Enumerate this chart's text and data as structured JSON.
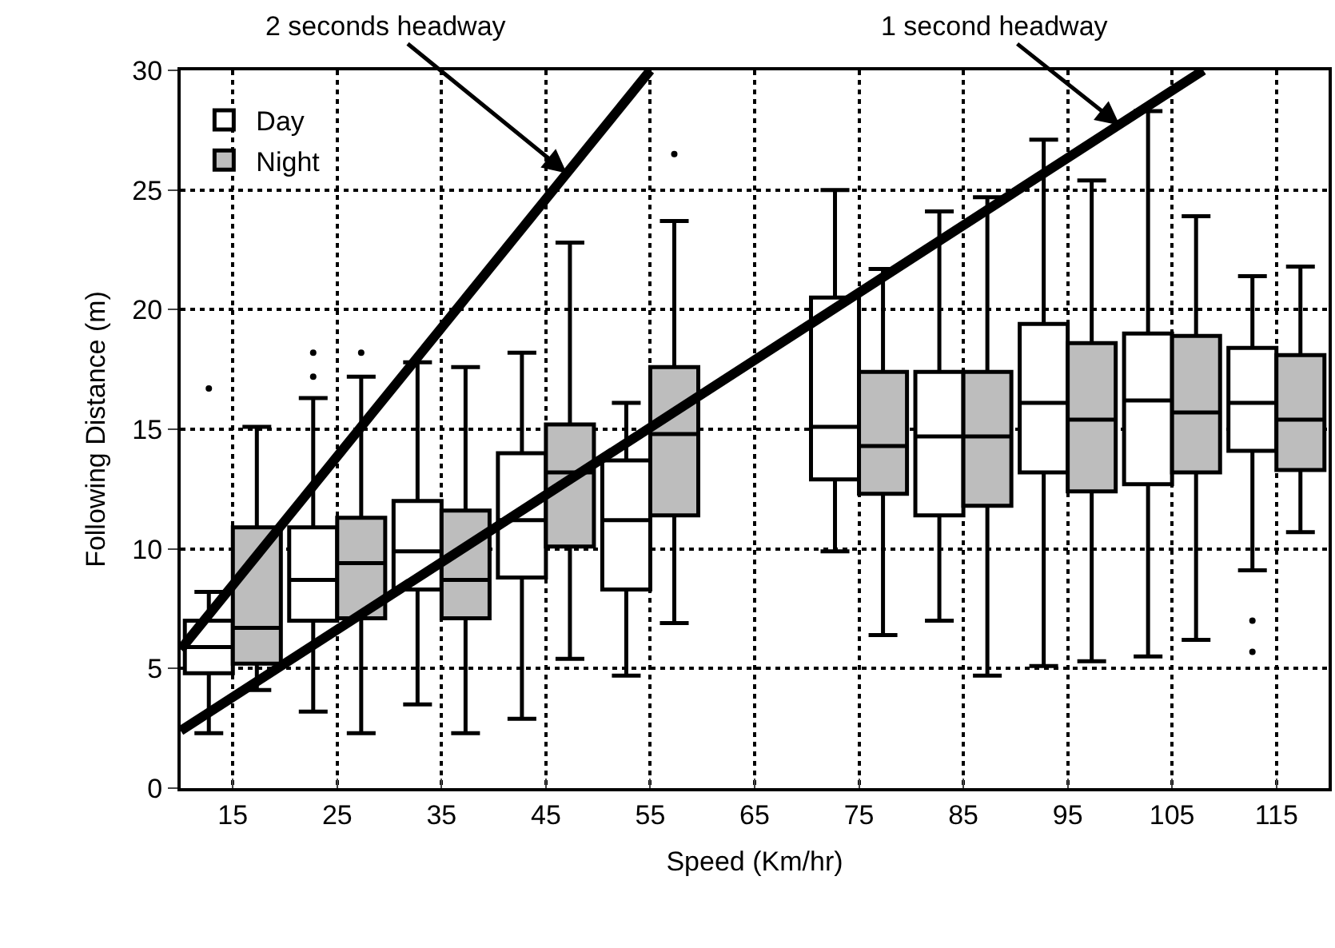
{
  "chart_data": {
    "type": "box",
    "xlabel": "Speed (Km/hr)",
    "ylabel": "Following Distance (m)",
    "x": [
      15,
      25,
      35,
      45,
      55,
      75,
      85,
      95,
      105,
      115
    ],
    "xlim": [
      10,
      120
    ],
    "xticks": [
      15,
      25,
      35,
      45,
      55,
      65,
      75,
      85,
      95,
      105,
      115
    ],
    "ylim": [
      0,
      30
    ],
    "yticks": [
      0,
      5,
      10,
      15,
      20,
      25,
      30
    ],
    "grid": true,
    "legend": "top left",
    "series": [
      {
        "name": "Day",
        "color": "#ffffff",
        "boxes": [
          {
            "low": 2.3,
            "q1": 4.8,
            "median": 5.9,
            "q3": 7.0,
            "high": 8.2,
            "outliers": [
              16.7
            ]
          },
          {
            "low": 3.2,
            "q1": 7.0,
            "median": 8.7,
            "q3": 10.9,
            "high": 16.3,
            "outliers": [
              17.2,
              18.2
            ]
          },
          {
            "low": 3.5,
            "q1": 8.3,
            "median": 9.9,
            "q3": 12.0,
            "high": 17.8
          },
          {
            "low": 2.9,
            "q1": 8.8,
            "median": 11.2,
            "q3": 14.0,
            "high": 18.2
          },
          {
            "low": 4.7,
            "q1": 8.3,
            "median": 11.2,
            "q3": 13.7,
            "high": 16.1
          },
          {
            "low": 9.9,
            "q1": 12.9,
            "median": 15.1,
            "q3": 20.5,
            "high": 25.0
          },
          {
            "low": 7.0,
            "q1": 11.4,
            "median": 14.7,
            "q3": 17.4,
            "high": 24.1
          },
          {
            "low": 5.1,
            "q1": 13.2,
            "median": 16.1,
            "q3": 19.4,
            "high": 27.1
          },
          {
            "low": 5.5,
            "q1": 12.7,
            "median": 16.2,
            "q3": 19.0,
            "high": 28.3
          },
          {
            "low": 9.1,
            "q1": 14.1,
            "median": 16.1,
            "q3": 18.4,
            "high": 21.4,
            "outliers": [
              5.7,
              7.0
            ]
          }
        ]
      },
      {
        "name": "Night",
        "color": "#bdbdbd",
        "boxes": [
          {
            "low": 4.1,
            "q1": 5.2,
            "median": 6.7,
            "q3": 10.9,
            "high": 15.1
          },
          {
            "low": 2.3,
            "q1": 7.1,
            "median": 9.4,
            "q3": 11.3,
            "high": 17.2,
            "outliers": [
              18.2
            ]
          },
          {
            "low": 2.3,
            "q1": 7.1,
            "median": 8.7,
            "q3": 11.6,
            "high": 17.6
          },
          {
            "low": 5.4,
            "q1": 10.1,
            "median": 13.2,
            "q3": 15.2,
            "high": 22.8
          },
          {
            "low": 6.9,
            "q1": 11.4,
            "median": 14.8,
            "q3": 17.6,
            "high": 23.7,
            "outliers": [
              26.5
            ]
          },
          {
            "low": 6.4,
            "q1": 12.3,
            "median": 14.3,
            "q3": 17.4,
            "high": 21.7
          },
          {
            "low": 4.7,
            "q1": 11.8,
            "median": 14.7,
            "q3": 17.4,
            "high": 24.7
          },
          {
            "low": 5.3,
            "q1": 12.4,
            "median": 15.4,
            "q3": 18.6,
            "high": 25.4
          },
          {
            "low": 6.2,
            "q1": 13.2,
            "median": 15.7,
            "q3": 18.9,
            "high": 23.9
          },
          {
            "low": 10.7,
            "q1": 13.3,
            "median": 15.4,
            "q3": 18.1,
            "high": 21.8
          }
        ]
      },
      {
        "type": "line",
        "color": "#000000",
        "x": [
          10,
          55
        ],
        "values": [
          5.8,
          30
        ]
      },
      {
        "type": "line",
        "color": "#000000",
        "x": [
          10,
          108
        ],
        "values": [
          2.4,
          30
        ]
      }
    ],
    "annotations": [
      {
        "text": "2 seconds headway",
        "x": 47,
        "y": 25.7
      },
      {
        "text": "1 second headway",
        "x": 100,
        "y": 27.7
      }
    ]
  }
}
